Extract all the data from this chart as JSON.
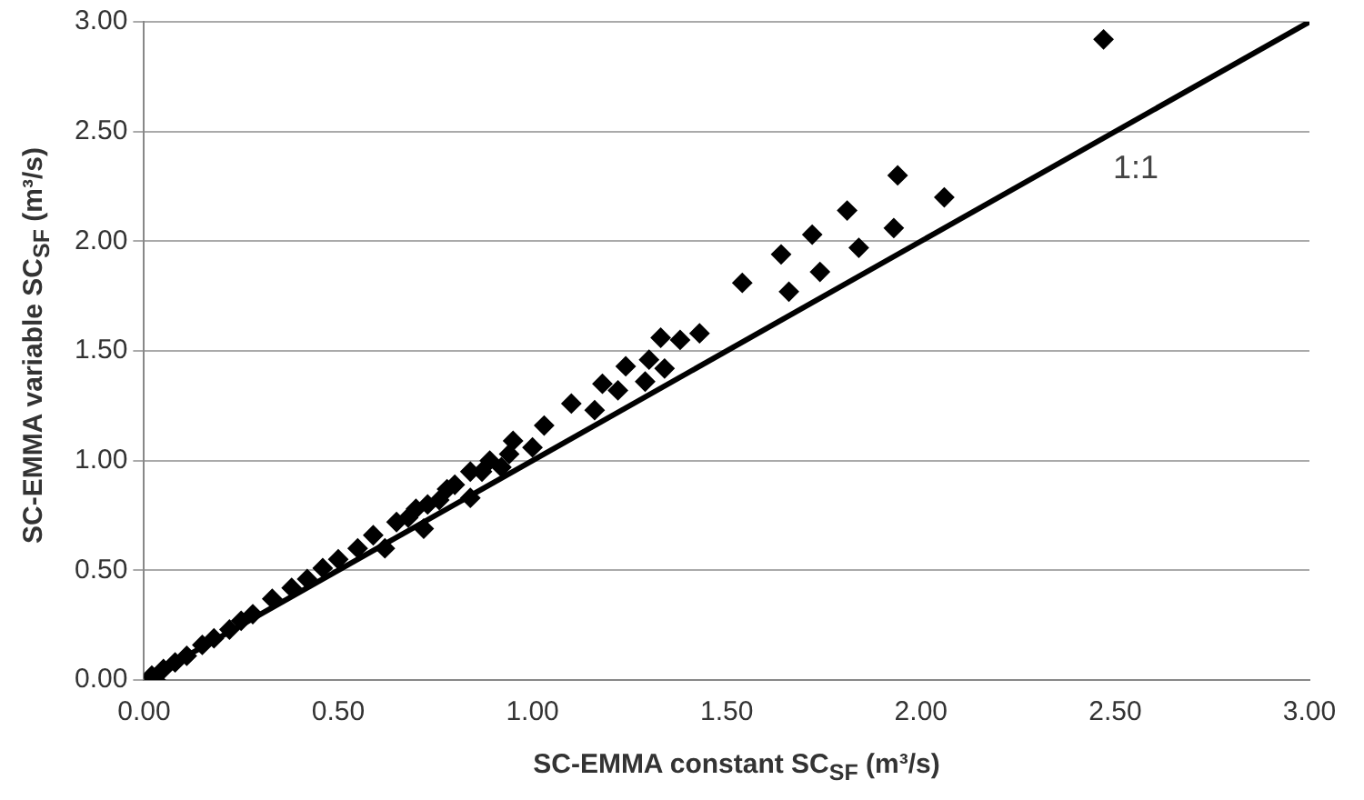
{
  "chart_data": {
    "type": "scatter",
    "xlabel": "SC-EMMA constant SC$_{SF}$ (m³/s)",
    "ylabel": "SC-EMMA variable SC$_{SF}$ (m³/s)",
    "xlim": [
      0,
      3
    ],
    "ylim": [
      0,
      3
    ],
    "xticks": [
      {
        "value": 0,
        "label": "0.00"
      },
      {
        "value": 0.5,
        "label": "0.50"
      },
      {
        "value": 1,
        "label": "1.00"
      },
      {
        "value": 1.5,
        "label": "1.50"
      },
      {
        "value": 2,
        "label": "2.00"
      },
      {
        "value": 2.5,
        "label": "2.50"
      },
      {
        "value": 3,
        "label": "3.00"
      }
    ],
    "yticks": [
      {
        "value": 0,
        "label": "0.00"
      },
      {
        "value": 0.5,
        "label": "0.50"
      },
      {
        "value": 1,
        "label": "1.00"
      },
      {
        "value": 1.5,
        "label": "1.50"
      },
      {
        "value": 2,
        "label": "2.00"
      },
      {
        "value": 2.5,
        "label": "2.50"
      },
      {
        "value": 3,
        "label": "3.00"
      }
    ],
    "grid": "y",
    "legend": false,
    "marker": "diamond",
    "annotations": [
      "1:1"
    ],
    "series": [
      {
        "color": "#000000",
        "x": [
          0.02,
          0.03,
          0.05,
          0.08,
          0.11,
          0.15,
          0.18,
          0.22,
          0.25,
          0.28,
          0.33,
          0.38,
          0.42,
          0.46,
          0.5,
          0.55,
          0.59,
          0.62,
          0.65,
          0.68,
          0.7,
          0.72,
          0.73,
          0.76,
          0.78,
          0.8,
          0.84,
          0.84,
          0.87,
          0.89,
          0.92,
          0.94,
          0.95,
          1.0,
          1.03,
          1.1,
          1.16,
          1.18,
          1.22,
          1.24,
          1.29,
          1.3,
          1.33,
          1.34,
          1.38,
          1.43,
          1.54,
          1.64,
          1.66,
          1.72,
          1.74,
          1.81,
          1.84,
          1.93,
          1.94,
          2.06,
          2.47
        ],
        "values": [
          0.02,
          0.0,
          0.05,
          0.08,
          0.11,
          0.16,
          0.19,
          0.23,
          0.27,
          0.3,
          0.37,
          0.42,
          0.46,
          0.51,
          0.55,
          0.6,
          0.66,
          0.6,
          0.72,
          0.74,
          0.78,
          0.69,
          0.8,
          0.82,
          0.87,
          0.89,
          0.95,
          0.83,
          0.95,
          1.0,
          0.97,
          1.03,
          1.09,
          1.06,
          1.16,
          1.26,
          1.23,
          1.35,
          1.32,
          1.43,
          1.36,
          1.46,
          1.56,
          1.42,
          1.55,
          1.58,
          1.81,
          1.94,
          1.77,
          2.03,
          1.86,
          2.14,
          1.97,
          2.06,
          2.3,
          2.2,
          2.92
        ]
      },
      {
        "type": "line",
        "color": "#000000",
        "line_style": "solid",
        "marker": "none",
        "x": [
          0,
          3
        ],
        "values": [
          0,
          3
        ]
      }
    ]
  }
}
